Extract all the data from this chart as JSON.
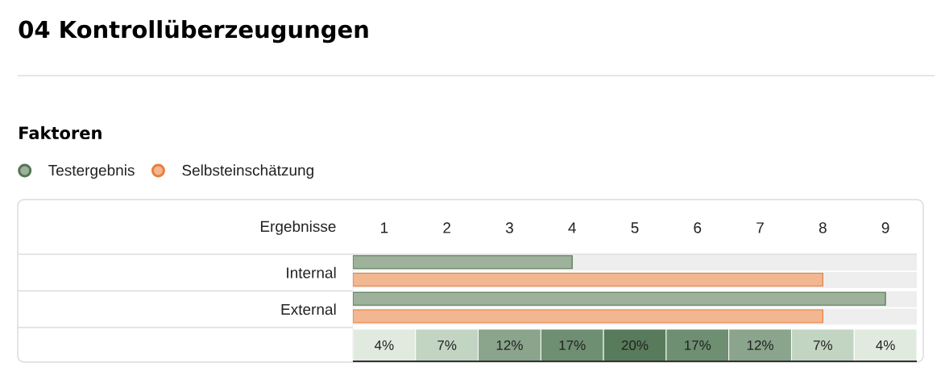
{
  "chart_data": {
    "type": "bar",
    "orientation": "horizontal",
    "title": "04 Kontrollüberzeugungen",
    "subtitle": "Faktoren",
    "xlabel": "Ergebnisse",
    "categories": [
      "Internal",
      "External"
    ],
    "series": [
      {
        "name": "Testergebnis",
        "color": "#9db19b",
        "values": [
          4,
          9
        ]
      },
      {
        "name": "Selbsteinschätzung",
        "color": "#f2b690",
        "values": [
          8,
          8
        ]
      }
    ],
    "xlim": [
      0.5,
      9.5
    ],
    "xticks": [
      1,
      2,
      3,
      4,
      5,
      6,
      7,
      8,
      9
    ],
    "legend": "top left",
    "bands": [
      {
        "axis": "x",
        "from": 0.5,
        "to": 1.5,
        "label": "4%",
        "color": "#e1eadf"
      },
      {
        "axis": "x",
        "from": 1.5,
        "to": 2.5,
        "label": "7%",
        "color": "#c2d4c2"
      },
      {
        "axis": "x",
        "from": 2.5,
        "to": 3.5,
        "label": "12%",
        "color": "#8ba48c"
      },
      {
        "axis": "x",
        "from": 3.5,
        "to": 4.5,
        "label": "17%",
        "color": "#6e8f71"
      },
      {
        "axis": "x",
        "from": 4.5,
        "to": 5.5,
        "label": "20%",
        "color": "#587c5b"
      },
      {
        "axis": "x",
        "from": 5.5,
        "to": 6.5,
        "label": "17%",
        "color": "#6e8f71"
      },
      {
        "axis": "x",
        "from": 6.5,
        "to": 7.5,
        "label": "12%",
        "color": "#8ba48c"
      },
      {
        "axis": "x",
        "from": 7.5,
        "to": 8.5,
        "label": "7%",
        "color": "#c2d4c2"
      },
      {
        "axis": "x",
        "from": 8.5,
        "to": 9.5,
        "label": "4%",
        "color": "#e1eadf"
      }
    ]
  }
}
